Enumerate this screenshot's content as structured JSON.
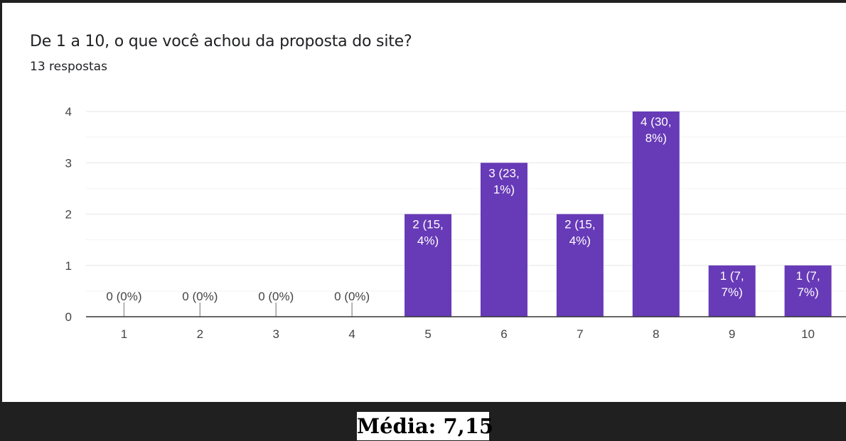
{
  "question": "De 1 a 10, o que você achou da proposta do site?",
  "responses_text": "13 respostas",
  "footer": "Média: 7,15",
  "chart_data": {
    "type": "bar",
    "title": "De 1 a 10, o que você achou da proposta do site?",
    "categories": [
      "1",
      "2",
      "3",
      "4",
      "5",
      "6",
      "7",
      "8",
      "9",
      "10"
    ],
    "values": [
      0,
      0,
      0,
      0,
      2,
      3,
      2,
      4,
      1,
      1
    ],
    "data_labels": [
      [
        "0 (0%)"
      ],
      [
        "0 (0%)"
      ],
      [
        "0 (0%)"
      ],
      [
        "0 (0%)"
      ],
      [
        "2 (15,",
        "4%)"
      ],
      [
        "3 (23,",
        "1%)"
      ],
      [
        "2 (15,",
        "4%)"
      ],
      [
        "4 (30,",
        "8%)"
      ],
      [
        "1 (7,",
        "7%)"
      ],
      [
        "1 (7,",
        "7%)"
      ]
    ],
    "y_ticks": [
      "0",
      "1",
      "2",
      "3",
      "4"
    ],
    "ylim": [
      0,
      4
    ],
    "grid": true,
    "bar_color": "#673ab7"
  }
}
